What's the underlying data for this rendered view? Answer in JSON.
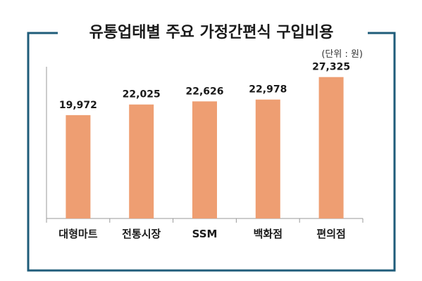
{
  "chart_data": {
    "type": "bar",
    "title": "유통업태별 주요 가정간편식 구입비용",
    "unit_note": "(단위 : 원)",
    "categories": [
      "대형마트",
      "전통시장",
      "SSM",
      "백화점",
      "편의점"
    ],
    "values": [
      19972,
      22025,
      22626,
      22978,
      27325
    ],
    "value_labels": [
      "19,972",
      "22,025",
      "22,626",
      "22,978",
      "27,325"
    ],
    "ylim": [
      0,
      30000
    ],
    "grid": false,
    "legend": "none",
    "colors": {
      "bar": "#EE9E72",
      "frame": "#1F5C7A",
      "axis": "#9A9A9A",
      "text": "#1A1A1A"
    }
  }
}
